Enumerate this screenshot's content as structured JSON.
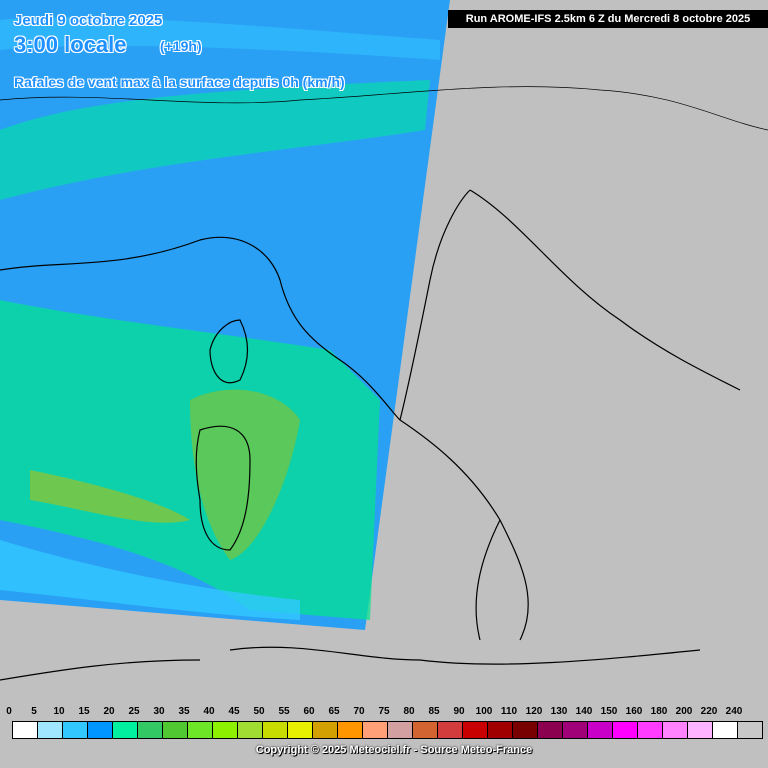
{
  "header": {
    "date": "Jeudi 9 octobre 2025",
    "time": "3:00 locale",
    "lead": "(+19h)",
    "subtitle": "Rafales de vent max à la surface depuis 0h (km/h)",
    "run": "Run AROME-IFS 2.5km 6 Z du Mercredi 8 octobre 2025"
  },
  "legend": {
    "labels": [
      0,
      5,
      10,
      15,
      20,
      25,
      30,
      35,
      40,
      45,
      50,
      55,
      60,
      65,
      70,
      75,
      80,
      85,
      90,
      100,
      110,
      120,
      130,
      140,
      150,
      160,
      180,
      200,
      220,
      240
    ],
    "colors": [
      "#ffffff",
      "#a0e6ff",
      "#32c8ff",
      "#0096ff",
      "#00f0a0",
      "#32c864",
      "#50c832",
      "#6ee628",
      "#8cf000",
      "#a0dc32",
      "#c8dc00",
      "#e6f000",
      "#d2a000",
      "#ff9600",
      "#ffa078",
      "#d2a0a0",
      "#d26432",
      "#d23c3c",
      "#c80000",
      "#a00000",
      "#780000",
      "#8c0050",
      "#a00078",
      "#c800c8",
      "#ff00ff",
      "#ff3cff",
      "#ff82ff",
      "#ffb4ff",
      "#ffffff",
      "#c8c8c8"
    ]
  },
  "footer": "Copyright © 2025 Meteociel.fr - Source Meteo-France"
}
